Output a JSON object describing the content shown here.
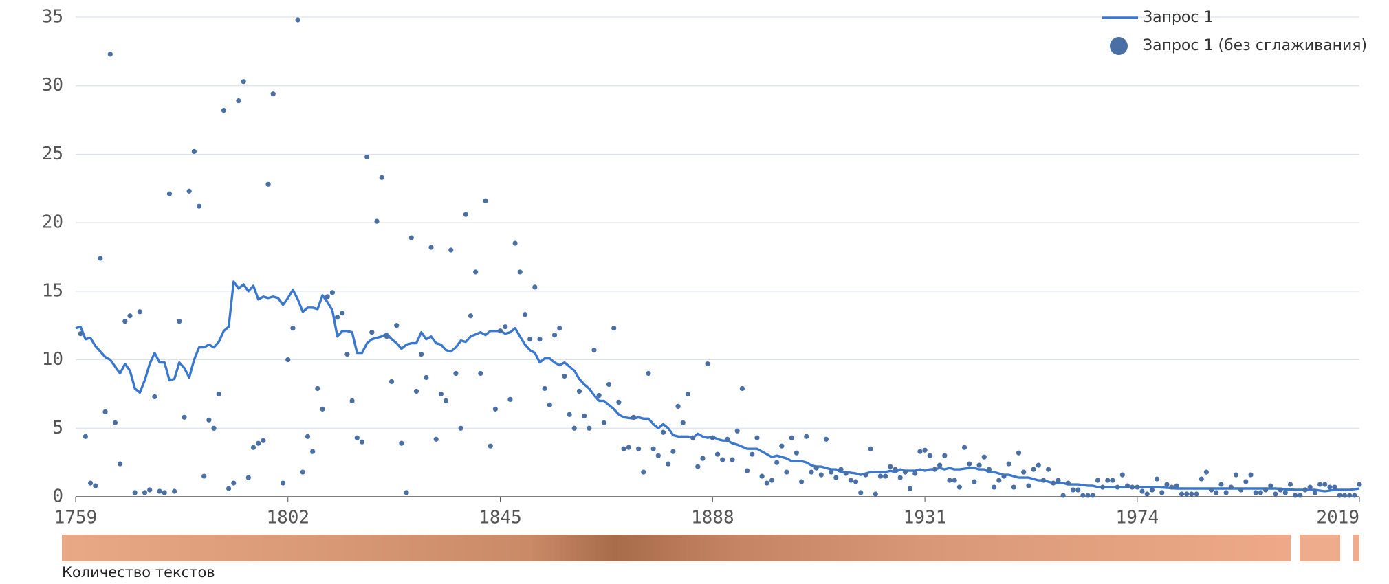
{
  "chart_data": {
    "type": "line",
    "strip_label": "Количество текстов",
    "xlim": [
      1759,
      2019
    ],
    "xticks": [
      1759,
      1802,
      1845,
      1888,
      1931,
      1974,
      2019
    ],
    "ylim": [
      0,
      35
    ],
    "yticks": [
      0,
      5,
      10,
      15,
      20,
      25,
      30,
      35
    ],
    "grid": true,
    "legend": "top-right",
    "series": [
      {
        "name": "Запрос 1",
        "color": "#3a78d0",
        "kind": "line",
        "x": [
          1759,
          1760,
          1761,
          1762,
          1763,
          1765,
          1766,
          1767,
          1768,
          1769,
          1770,
          1771,
          1772,
          1773,
          1774,
          1775,
          1776,
          1777,
          1778,
          1779,
          1780,
          1781,
          1782,
          1783,
          1784,
          1785,
          1786,
          1787,
          1788,
          1789,
          1790,
          1791,
          1792,
          1793,
          1794,
          1795,
          1796,
          1797,
          1798,
          1799,
          1800,
          1801,
          1802,
          1803,
          1804,
          1805,
          1806,
          1807,
          1808,
          1809,
          1810,
          1811,
          1812,
          1813,
          1814,
          1815,
          1816,
          1817,
          1818,
          1819,
          1820,
          1821,
          1822,
          1823,
          1824,
          1825,
          1826,
          1827,
          1828,
          1829,
          1830,
          1831,
          1832,
          1833,
          1834,
          1835,
          1836,
          1837,
          1838,
          1839,
          1841,
          1842,
          1843,
          1844,
          1845,
          1846,
          1847,
          1848,
          1849,
          1850,
          1851,
          1852,
          1853,
          1854,
          1855,
          1856,
          1857,
          1858,
          1860,
          1861,
          1862,
          1863,
          1864,
          1865,
          1866,
          1867,
          1868,
          1869,
          1870,
          1872,
          1873,
          1874,
          1875,
          1876,
          1877,
          1878,
          1879,
          1880,
          1881,
          1883,
          1884,
          1885,
          1886,
          1887,
          1888,
          1889,
          1890,
          1891,
          1892,
          1893,
          1895,
          1896,
          1897,
          1898,
          1899,
          1900,
          1901,
          1902,
          1903,
          1904,
          1906,
          1907,
          1908,
          1909,
          1910,
          1911,
          1912,
          1913,
          1914,
          1915,
          1917,
          1918,
          1919,
          1920,
          1921,
          1922,
          1923,
          1924,
          1925,
          1926,
          1927,
          1929,
          1930,
          1931,
          1932,
          1933,
          1934,
          1935,
          1936,
          1937,
          1938,
          1940,
          1941,
          1942,
          1943,
          1944,
          1945,
          1946,
          1947,
          1948,
          1949,
          1950,
          1952,
          1953,
          1954,
          1955,
          1956,
          1957,
          1958,
          1959,
          1960,
          1961,
          1962,
          1964,
          1965,
          1966,
          1970,
          1974,
          1978,
          1982,
          1986,
          1990,
          1994,
          1998,
          2002,
          2006,
          2010,
          2012,
          2014,
          2017,
          2019
        ],
        "values": [
          12.3,
          12.4,
          11.5,
          11.6,
          11.0,
          10.2,
          10.0,
          9.5,
          9.0,
          9.7,
          9.2,
          7.9,
          7.6,
          8.5,
          9.7,
          10.5,
          9.8,
          9.8,
          8.5,
          8.6,
          9.8,
          9.4,
          8.7,
          10.0,
          10.9,
          10.9,
          11.1,
          10.9,
          11.3,
          12.1,
          12.4,
          15.7,
          15.2,
          15.5,
          15.0,
          15.4,
          14.4,
          14.6,
          14.5,
          14.6,
          14.5,
          14.0,
          14.5,
          15.1,
          14.4,
          13.5,
          13.8,
          13.8,
          13.7,
          14.7,
          14.2,
          13.6,
          11.7,
          12.1,
          12.1,
          12.0,
          10.5,
          10.5,
          11.2,
          11.5,
          11.6,
          11.7,
          11.9,
          11.5,
          11.2,
          10.8,
          11.1,
          11.2,
          11.2,
          12.0,
          11.5,
          11.7,
          11.2,
          11.1,
          10.7,
          10.6,
          10.9,
          11.4,
          11.3,
          11.7,
          12.0,
          11.8,
          12.1,
          12.1,
          12.1,
          11.9,
          12.0,
          12.3,
          11.7,
          11.1,
          10.7,
          10.5,
          9.8,
          10.1,
          10.1,
          9.8,
          9.6,
          9.8,
          9.2,
          8.6,
          8.2,
          7.9,
          7.4,
          7.0,
          7.0,
          6.7,
          6.4,
          6.0,
          5.8,
          5.7,
          5.8,
          5.7,
          5.7,
          5.3,
          5.0,
          5.3,
          5.0,
          4.5,
          4.4,
          4.4,
          4.3,
          4.6,
          4.4,
          4.3,
          4.4,
          4.2,
          4.1,
          4.1,
          3.9,
          3.8,
          3.5,
          3.5,
          3.5,
          3.3,
          3.1,
          2.9,
          3.0,
          2.9,
          2.8,
          2.6,
          2.6,
          2.5,
          2.3,
          2.2,
          2.2,
          2.1,
          2.0,
          2.0,
          1.8,
          1.8,
          1.7,
          1.6,
          1.7,
          1.8,
          1.8,
          1.8,
          1.8,
          1.9,
          1.8,
          2.0,
          1.9,
          1.9,
          2.0,
          1.9,
          2.0,
          2.0,
          2.1,
          2.0,
          2.1,
          2.0,
          2.0,
          2.1,
          2.1,
          2.0,
          2.0,
          1.8,
          1.8,
          1.7,
          1.6,
          1.6,
          1.5,
          1.4,
          1.4,
          1.3,
          1.2,
          1.2,
          1.1,
          1.0,
          1.0,
          1.0,
          0.9,
          0.9,
          0.9,
          0.8,
          0.8,
          0.7,
          0.7,
          0.7,
          0.7,
          0.6,
          0.6,
          0.6,
          0.6,
          0.6,
          0.6,
          0.5,
          0.5,
          0.4,
          0.5,
          0.5,
          0.6
        ]
      },
      {
        "name": "Запрос 1 (без сглаживания)",
        "color": "#4a6fa5",
        "kind": "scatter",
        "x": [
          1760,
          1761,
          1762,
          1763,
          1764,
          1765,
          1766,
          1767,
          1768,
          1769,
          1770,
          1771,
          1772,
          1773,
          1774,
          1775,
          1776,
          1777,
          1778,
          1779,
          1780,
          1781,
          1782,
          1783,
          1784,
          1785,
          1786,
          1787,
          1788,
          1789,
          1790,
          1791,
          1792,
          1793,
          1794,
          1795,
          1796,
          1797,
          1798,
          1799,
          1801,
          1802,
          1803,
          1804,
          1805,
          1806,
          1807,
          1808,
          1809,
          1810,
          1811,
          1812,
          1813,
          1814,
          1815,
          1816,
          1817,
          1818,
          1819,
          1820,
          1821,
          1822,
          1823,
          1824,
          1825,
          1826,
          1827,
          1828,
          1829,
          1830,
          1831,
          1832,
          1833,
          1834,
          1835,
          1836,
          1837,
          1838,
          1839,
          1840,
          1841,
          1842,
          1843,
          1844,
          1845,
          1846,
          1847,
          1848,
          1849,
          1850,
          1851,
          1852,
          1853,
          1854,
          1855,
          1856,
          1857,
          1858,
          1859,
          1860,
          1861,
          1862,
          1863,
          1864,
          1865,
          1866,
          1867,
          1868,
          1869,
          1870,
          1871,
          1872,
          1873,
          1874,
          1875,
          1876,
          1877,
          1878,
          1879,
          1880,
          1881,
          1882,
          1883,
          1884,
          1885,
          1886,
          1887,
          1888,
          1889,
          1890,
          1891,
          1892,
          1893,
          1894,
          1895,
          1896,
          1897,
          1898,
          1899,
          1900,
          1901,
          1902,
          1903,
          1904,
          1905,
          1906,
          1907,
          1908,
          1909,
          1910,
          1911,
          1912,
          1913,
          1914,
          1915,
          1916,
          1917,
          1918,
          1919,
          1920,
          1921,
          1922,
          1923,
          1924,
          1925,
          1926,
          1927,
          1928,
          1929,
          1930,
          1931,
          1932,
          1933,
          1934,
          1935,
          1936,
          1937,
          1938,
          1939,
          1940,
          1941,
          1942,
          1943,
          1944,
          1945,
          1946,
          1947,
          1948,
          1949,
          1950,
          1951,
          1952,
          1953,
          1954,
          1955,
          1956,
          1957,
          1958,
          1959,
          1960,
          1961,
          1962,
          1963,
          1964,
          1965,
          1966,
          1967,
          1968,
          1969,
          1970,
          1971,
          1972,
          1973,
          1974,
          1975,
          1976,
          1977,
          1978,
          1979,
          1980,
          1981,
          1982,
          1983,
          1984,
          1985,
          1986,
          1987,
          1988,
          1989,
          1990,
          1991,
          1992,
          1993,
          1994,
          1995,
          1996,
          1997,
          1998,
          1999,
          2000,
          2001,
          2002,
          2003,
          2004,
          2005,
          2006,
          2007,
          2008,
          2009,
          2010,
          2011,
          2012,
          2013,
          2014,
          2015,
          2016,
          2017,
          2018,
          2019
        ],
        "values": [
          11.9,
          4.4,
          1.0,
          0.8,
          17.4,
          6.2,
          32.3,
          5.4,
          2.4,
          12.8,
          13.2,
          0.3,
          13.5,
          0.3,
          0.5,
          7.3,
          0.4,
          0.3,
          22.1,
          0.4,
          12.8,
          5.8,
          22.3,
          25.2,
          21.2,
          1.5,
          5.6,
          5.0,
          7.5,
          28.2,
          0.6,
          1.0,
          28.9,
          30.3,
          1.4,
          3.6,
          3.9,
          4.1,
          22.8,
          29.4,
          1.0,
          10.0,
          12.3,
          34.8,
          1.8,
          4.4,
          3.3,
          7.9,
          6.4,
          14.6,
          14.9,
          13.1,
          13.4,
          10.4,
          7.0,
          4.3,
          4.0,
          24.8,
          12.0,
          20.1,
          23.3,
          11.7,
          8.4,
          12.5,
          3.9,
          0.3,
          18.9,
          7.7,
          10.4,
          8.7,
          18.2,
          4.2,
          7.5,
          7.0,
          18.0,
          9.0,
          5.0,
          20.6,
          13.2,
          16.4,
          9.0,
          21.6,
          3.7,
          6.4,
          12.1,
          12.4,
          7.1,
          18.5,
          16.4,
          13.3,
          11.5,
          15.3,
          11.5,
          7.9,
          6.7,
          11.8,
          12.3,
          8.8,
          6.0,
          5.0,
          7.7,
          5.9,
          5.0,
          10.7,
          7.4,
          5.4,
          8.2,
          12.3,
          6.9,
          3.5,
          3.6,
          5.8,
          3.5,
          1.8,
          9.0,
          3.5,
          3.0,
          4.7,
          2.4,
          3.3,
          6.6,
          5.4,
          7.5,
          4.3,
          2.2,
          2.8,
          9.7,
          4.3,
          3.1,
          2.7,
          4.2,
          2.7,
          4.8,
          7.9,
          1.9,
          3.1,
          4.3,
          1.5,
          1.0,
          1.2,
          2.5,
          3.7,
          1.8,
          4.3,
          3.2,
          1.1,
          4.4,
          1.8,
          2.1,
          1.6,
          4.2,
          1.8,
          1.4,
          2.0,
          1.7,
          1.2,
          1.1,
          0.3,
          1.6,
          3.5,
          0.2,
          1.5,
          1.5,
          2.2,
          2.0,
          1.4,
          1.8,
          0.6,
          1.7,
          3.3,
          3.4,
          3.0,
          2.0,
          2.3,
          3.0,
          1.2,
          1.2,
          0.7,
          3.6,
          2.4,
          1.1,
          2.3,
          2.9,
          2.0,
          0.7,
          1.2,
          1.5,
          2.4,
          0.7,
          3.2,
          1.8,
          0.8,
          2.0,
          2.3,
          1.2,
          2.0,
          1.0,
          1.2,
          0.1,
          1.0,
          0.5,
          0.5,
          0.1,
          0.1,
          0.1,
          1.2,
          0.7,
          1.2,
          1.2,
          0.7,
          1.6,
          0.8,
          0.7,
          0.7,
          0.4,
          0.2,
          0.5,
          1.3,
          0.3,
          0.9,
          0.7,
          0.8,
          0.2,
          0.2,
          0.2,
          0.2,
          1.3,
          1.8,
          0.5,
          0.3,
          0.9,
          0.3,
          0.7,
          1.6,
          0.5,
          1.1,
          1.6,
          0.3,
          0.3,
          0.5,
          0.8,
          0.2,
          0.5,
          0.3,
          0.9,
          0.1,
          0.1,
          0.5,
          0.7,
          0.3,
          0.9,
          0.9,
          0.7,
          0.7,
          0.1,
          0.1,
          0.1,
          0.1,
          0.9
        ]
      }
    ]
  }
}
